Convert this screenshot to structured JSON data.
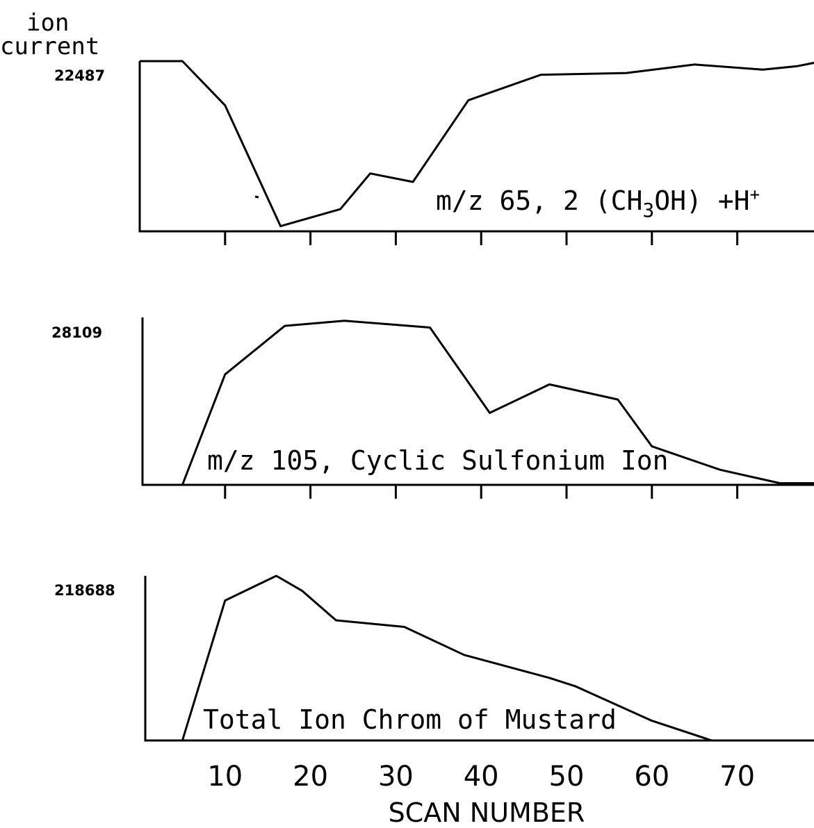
{
  "chart_data": [
    {
      "type": "line",
      "ylabel": "ion current",
      "ymax_label": "22487",
      "series_label": "m/z 65,  2(CH3OH) +H+",
      "x": [
        0,
        5,
        10,
        16.5,
        23.5,
        27,
        32,
        38.5,
        47,
        57,
        65,
        73,
        77,
        80
      ],
      "y": [
        1.0,
        1.0,
        0.74,
        0.03,
        0.13,
        0.34,
        0.29,
        0.77,
        0.92,
        0.93,
        0.98,
        0.95,
        0.97,
        1.0
      ],
      "ylim": [
        0,
        1
      ],
      "xlim": [
        0,
        80
      ],
      "xticks": [
        10,
        20,
        30,
        40,
        50,
        60,
        70
      ]
    },
    {
      "type": "line",
      "ymax_label": "28109",
      "series_label": "m/z 105, Cyclic Sulfonium Ion",
      "x": [
        5,
        10,
        17,
        24,
        34,
        41,
        48,
        56,
        60,
        68,
        75,
        80
      ],
      "y": [
        0.0,
        0.66,
        0.95,
        0.98,
        0.94,
        0.43,
        0.6,
        0.51,
        0.23,
        0.09,
        0.01,
        0.01
      ],
      "ylim": [
        0,
        1
      ],
      "xlim": [
        0,
        80
      ],
      "xticks": [
        10,
        20,
        30,
        40,
        50,
        60,
        70
      ]
    },
    {
      "type": "line",
      "ymax_label": "218688",
      "series_label": "Total Ion Chrom of Mustard",
      "x": [
        5,
        10,
        16,
        19,
        23,
        31,
        38,
        48,
        51,
        54,
        60,
        67,
        80
      ],
      "y": [
        0.0,
        0.85,
        1.0,
        0.91,
        0.73,
        0.69,
        0.52,
        0.38,
        0.33,
        0.26,
        0.12,
        0.0,
        0.0
      ],
      "ylim": [
        0,
        1
      ],
      "xlim": [
        0,
        80
      ],
      "xticks": [
        10,
        20,
        30,
        40,
        50,
        60,
        70
      ],
      "xticklabels": [
        "10",
        "20",
        "30",
        "40",
        "50",
        "60",
        "70"
      ],
      "xlabel": "SCAN NUMBER"
    }
  ]
}
